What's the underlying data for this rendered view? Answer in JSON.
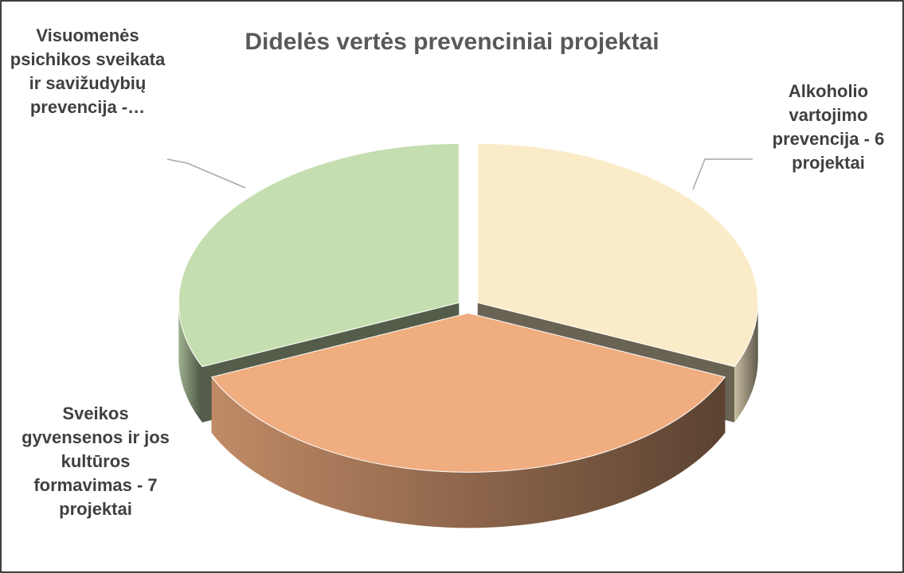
{
  "chart_data": {
    "type": "pie3d",
    "title": "Didelės vertės  prevenciniai projektai",
    "values": [
      6,
      7,
      6
    ],
    "value_labels": [
      "Alkoholio vartojimo prevencija  - 6 projektai",
      "Sveikos gyvensenos ir jos kultūros formavimas - 7 projektai",
      "Visuomenės psichikos sveikata ir savižudybių prevencija -…"
    ],
    "colors": [
      "#fbecc9",
      "#f0ad80",
      "#c5deb0"
    ]
  }
}
